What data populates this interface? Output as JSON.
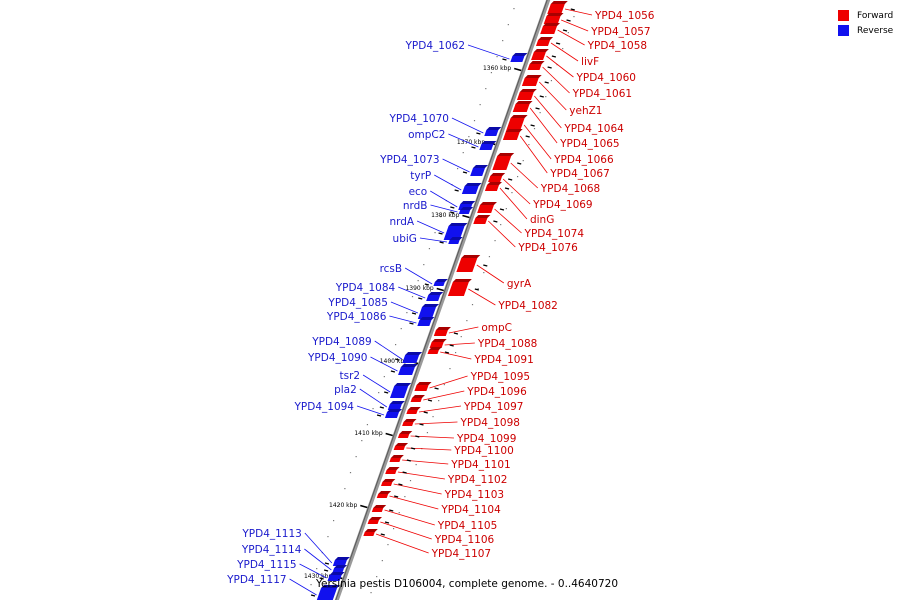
{
  "legend": {
    "forward_label": "Forward",
    "reverse_label": "Reverse",
    "forward_color": "#ee0000",
    "reverse_color": "#1111ee"
  },
  "caption": "Yersinia pestis D106004, complete genome. - 0..4640720",
  "ticks": [
    "1360 kbp",
    "1370 kbp",
    "1380 kbp",
    "1390 kbp",
    "1400 kbp",
    "1410 kbp",
    "1420 kbp",
    "1430 kbp"
  ],
  "forward_genes": [
    "YPD4_1056",
    "YPD4_1057",
    "YPD4_1058",
    "livF",
    "YPD4_1060",
    "YPD4_1061",
    "yehZ1",
    "YPD4_1064",
    "YPD4_1065",
    "YPD4_1066",
    "YPD4_1067",
    "YPD4_1068",
    "YPD4_1069",
    "dinG",
    "YPD4_1074",
    "YPD4_1076",
    "gyrA",
    "YPD4_1082",
    "ompC",
    "YPD4_1088",
    "YPD4_1091",
    "YPD4_1095",
    "YPD4_1096",
    "YPD4_1097",
    "YPD4_1098",
    "YPD4_1099",
    "YPD4_1100",
    "YPD4_1101",
    "YPD4_1102",
    "YPD4_1103",
    "YPD4_1104",
    "YPD4_1105",
    "YPD4_1106",
    "YPD4_1107"
  ],
  "reverse_genes": [
    "YPD4_1062",
    "YPD4_1070",
    "ompC2",
    "YPD4_1073",
    "tyrP",
    "eco",
    "nrdB",
    "nrdA",
    "ubiG",
    "rcsB",
    "YPD4_1084",
    "YPD4_1085",
    "YPD4_1086",
    "YPD4_1089",
    "YPD4_1090",
    "tsr2",
    "pla2",
    "YPD4_1094",
    "YPD4_1113",
    "YPD4_1114",
    "YPD4_1115",
    "YPD4_1117"
  ]
}
